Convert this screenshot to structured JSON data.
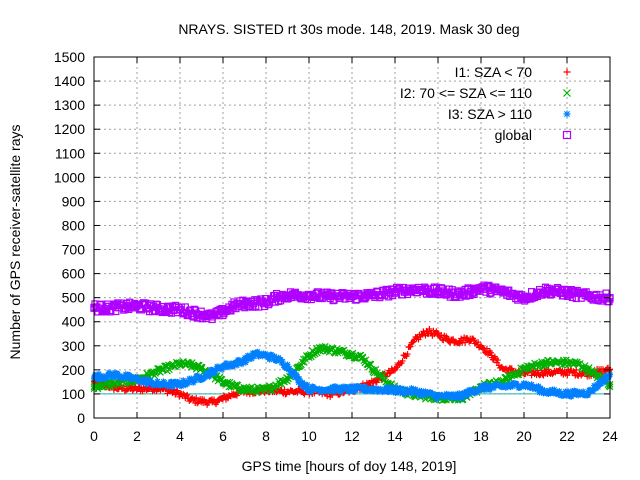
{
  "chart_data": {
    "type": "scatter",
    "title": "NRAYS. SISTED rt 30s mode. 148, 2019. Mask 30 deg",
    "xlabel": "GPS time [hours of doy 148, 2019]",
    "ylabel": "Number of GPS receiver-satellite rays",
    "xlim": [
      0,
      24
    ],
    "ylim": [
      0,
      1500
    ],
    "xticks": [
      0,
      2,
      4,
      6,
      8,
      10,
      12,
      14,
      16,
      18,
      20,
      22,
      24
    ],
    "yticks": [
      0,
      100,
      200,
      300,
      400,
      500,
      600,
      700,
      800,
      900,
      1000,
      1100,
      1200,
      1300,
      1400,
      1500
    ],
    "grid": true,
    "legend_position": "top-right",
    "reference_line": {
      "y": 100,
      "color": "#20b2aa"
    },
    "series": [
      {
        "name": "I1: SZA < 70",
        "marker": "plus",
        "color": "#ff0000",
        "x": [
          0,
          1,
          2,
          3,
          4,
          4.5,
          5,
          5.5,
          6,
          6.5,
          7,
          8,
          9,
          10,
          11,
          12,
          13,
          14,
          15,
          15.5,
          16,
          16.5,
          17,
          17.5,
          18,
          18.5,
          19,
          20,
          21,
          22,
          23,
          24
        ],
        "y": [
          150,
          125,
          120,
          125,
          100,
          75,
          70,
          65,
          80,
          100,
          110,
          115,
          110,
          110,
          100,
          115,
          150,
          200,
          330,
          360,
          345,
          325,
          320,
          330,
          300,
          260,
          205,
          185,
          190,
          190,
          185,
          200
        ]
      },
      {
        "name": "I2: 70 <= SZA <= 110",
        "marker": "cross",
        "color": "#00b000",
        "x": [
          0,
          1,
          2,
          3,
          4,
          4.5,
          5,
          5.5,
          6,
          6.5,
          7,
          8,
          9,
          10,
          10.5,
          11,
          12,
          12.5,
          13,
          14,
          15,
          16,
          17,
          17.5,
          18,
          19,
          20,
          21,
          22,
          22.5,
          23,
          24
        ],
        "y": [
          130,
          145,
          160,
          195,
          225,
          220,
          205,
          180,
          150,
          130,
          120,
          115,
          165,
          260,
          290,
          285,
          265,
          250,
          200,
          120,
          95,
          85,
          85,
          95,
          130,
          150,
          205,
          230,
          230,
          225,
          200,
          140
        ]
      },
      {
        "name": "I3: SZA > 110",
        "marker": "star",
        "color": "#0080ff",
        "x": [
          0,
          1,
          2,
          3,
          4,
          5,
          6,
          6.5,
          7,
          7.5,
          8,
          8.5,
          9,
          9.5,
          10,
          11,
          12,
          13,
          14,
          15,
          16,
          17,
          18,
          19,
          20,
          21,
          22,
          23,
          24
        ],
        "y": [
          170,
          180,
          160,
          140,
          140,
          170,
          215,
          225,
          240,
          265,
          260,
          245,
          215,
          160,
          120,
          120,
          120,
          120,
          115,
          110,
          90,
          90,
          125,
          130,
          140,
          110,
          100,
          105,
          180
        ]
      },
      {
        "name": "global",
        "marker": "square",
        "color": "#b000ff",
        "x": [
          0,
          0.5,
          1,
          2,
          3,
          4,
          5,
          5.5,
          6,
          6.5,
          7,
          8,
          8.5,
          9,
          10,
          11,
          12,
          13,
          14,
          15,
          16,
          17,
          17.5,
          18,
          19,
          20,
          21,
          22,
          23,
          24
        ],
        "y": [
          460,
          455,
          460,
          465,
          455,
          450,
          430,
          420,
          440,
          465,
          475,
          480,
          500,
          510,
          510,
          505,
          505,
          510,
          525,
          535,
          525,
          515,
          525,
          540,
          525,
          500,
          530,
          520,
          505,
          500
        ]
      }
    ]
  }
}
